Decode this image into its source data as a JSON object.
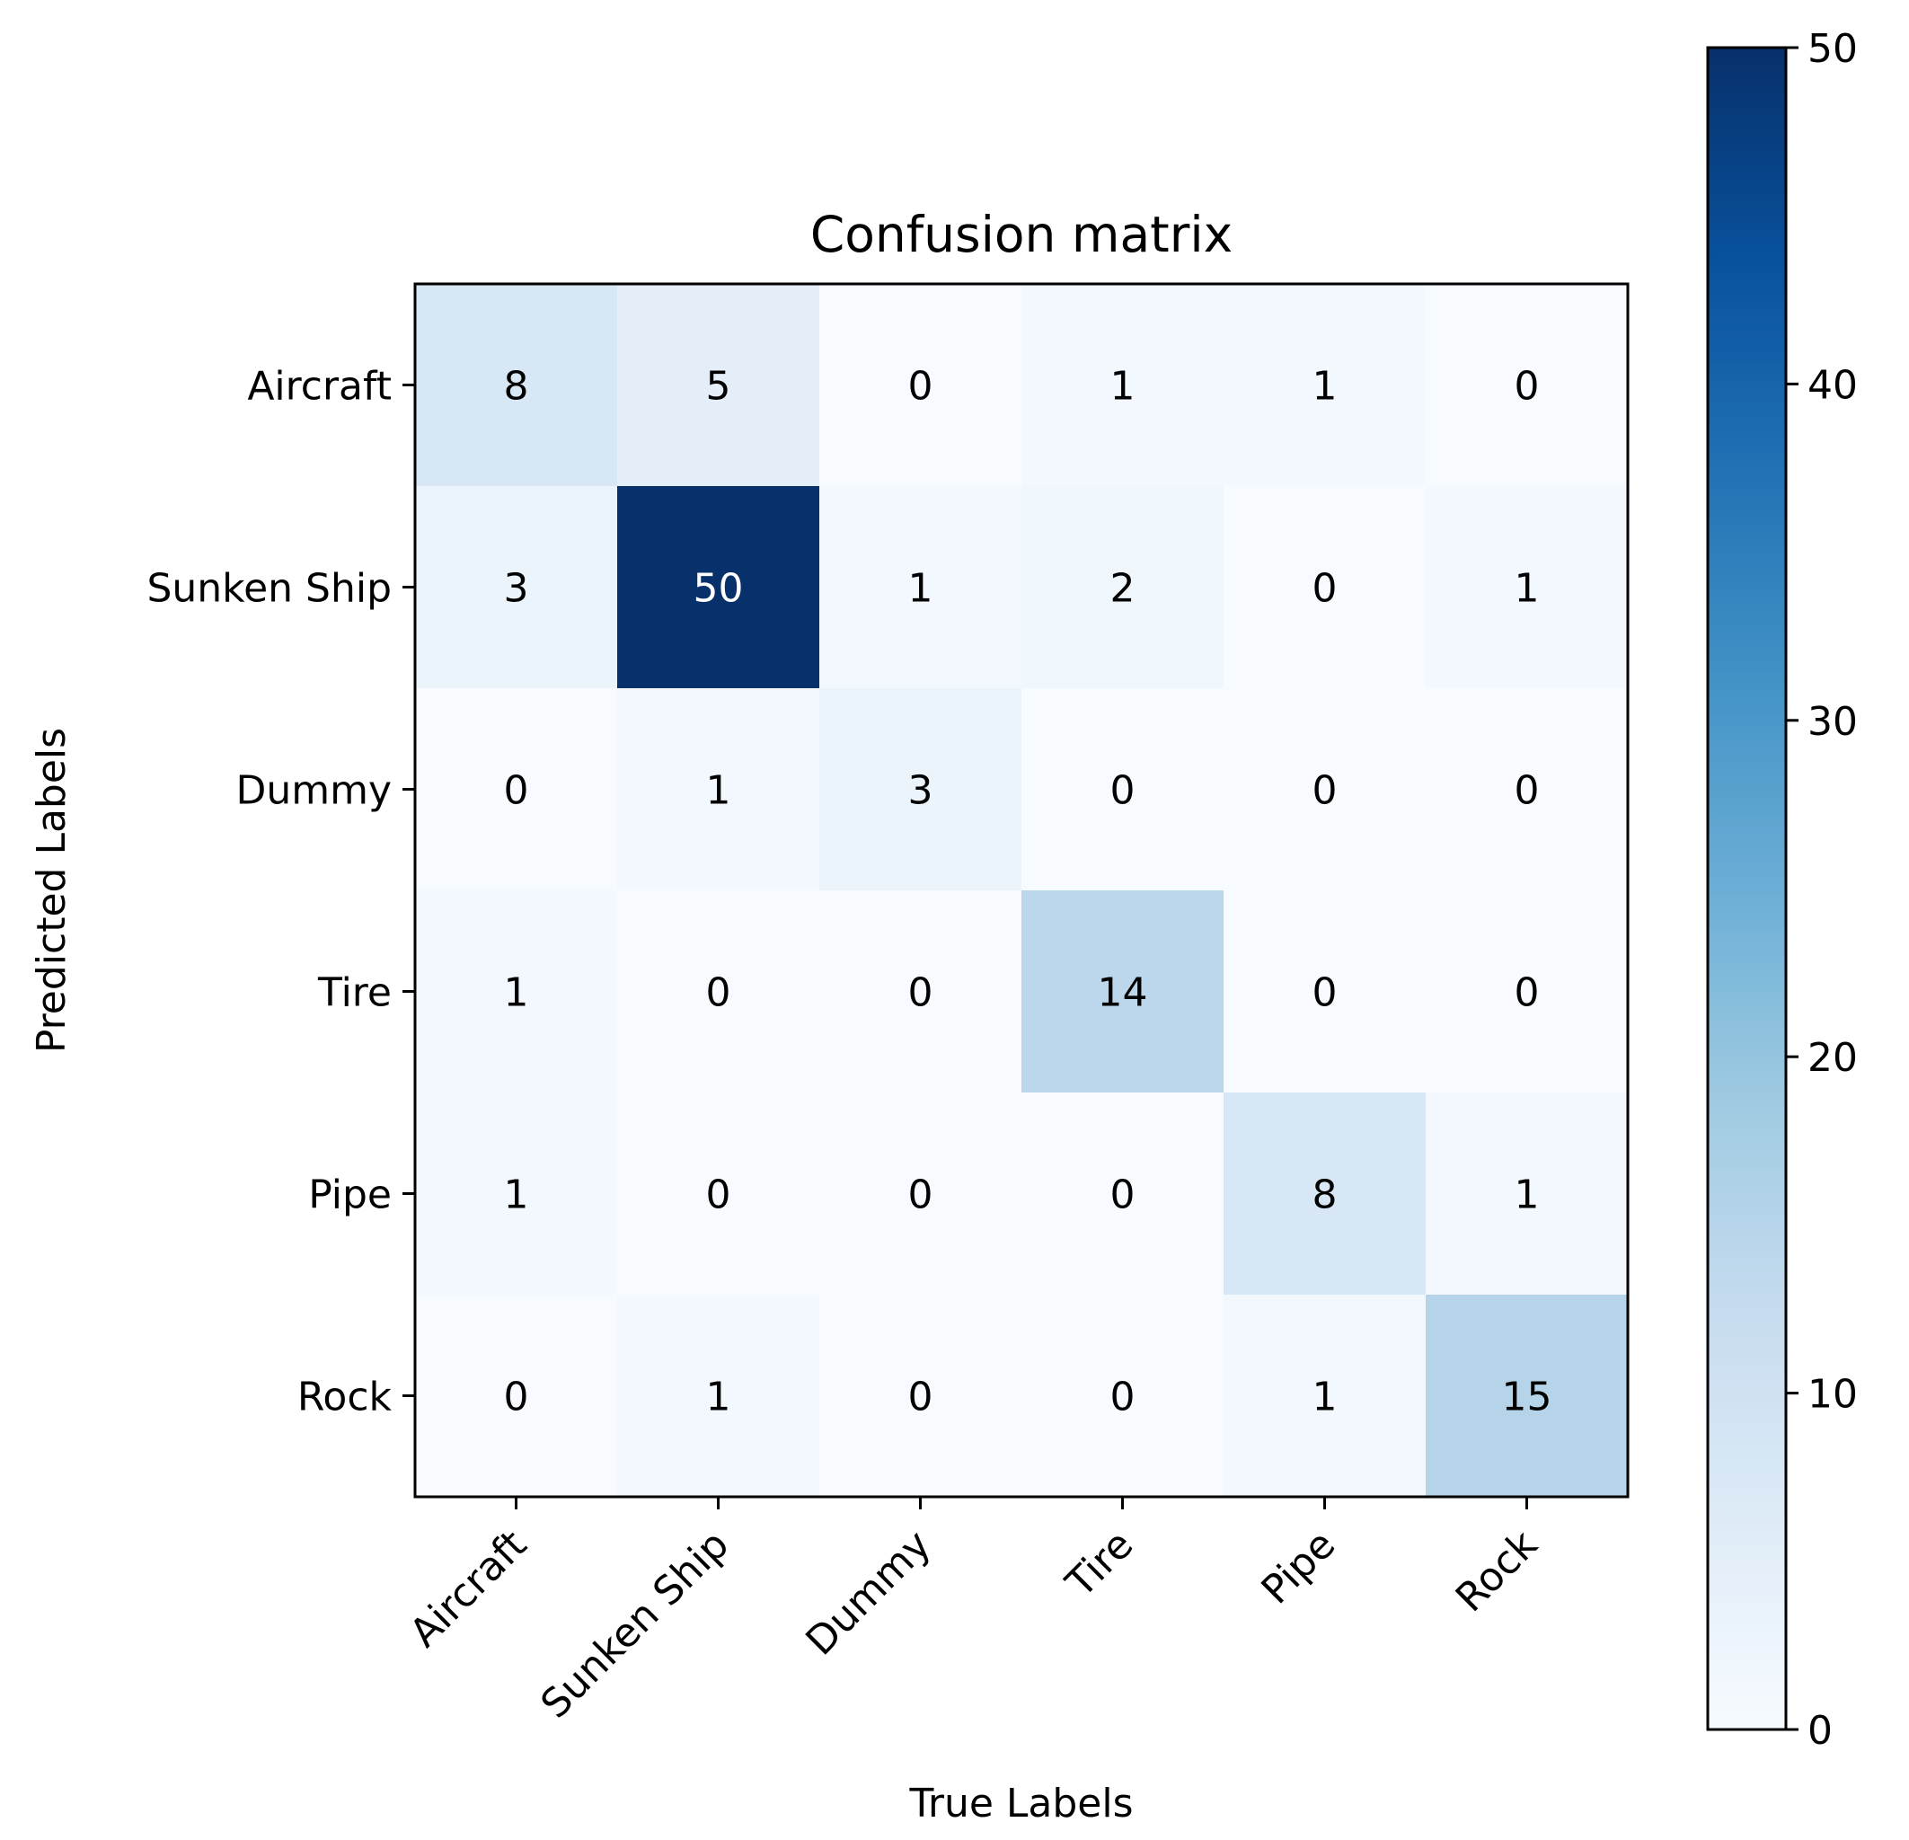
{
  "chart_data": {
    "type": "heatmap",
    "title": "Confusion matrix",
    "xlabel": "True Labels",
    "ylabel": "Predicted Labels",
    "x_categories": [
      "Aircraft",
      "Sunken Ship",
      "Dummy",
      "Tire",
      "Pipe",
      "Rock"
    ],
    "y_categories": [
      "Aircraft",
      "Sunken Ship",
      "Dummy",
      "Tire",
      "Pipe",
      "Rock"
    ],
    "values": [
      [
        8,
        5,
        0,
        1,
        1,
        0
      ],
      [
        3,
        50,
        1,
        2,
        0,
        1
      ],
      [
        0,
        1,
        3,
        0,
        0,
        0
      ],
      [
        1,
        0,
        0,
        14,
        0,
        0
      ],
      [
        1,
        0,
        0,
        0,
        8,
        1
      ],
      [
        0,
        1,
        0,
        0,
        1,
        15
      ]
    ],
    "colormap": "Blues",
    "colorbar": {
      "range": [
        0,
        50
      ],
      "ticks": [
        0,
        10,
        20,
        30,
        40,
        50
      ]
    },
    "grid": false
  }
}
